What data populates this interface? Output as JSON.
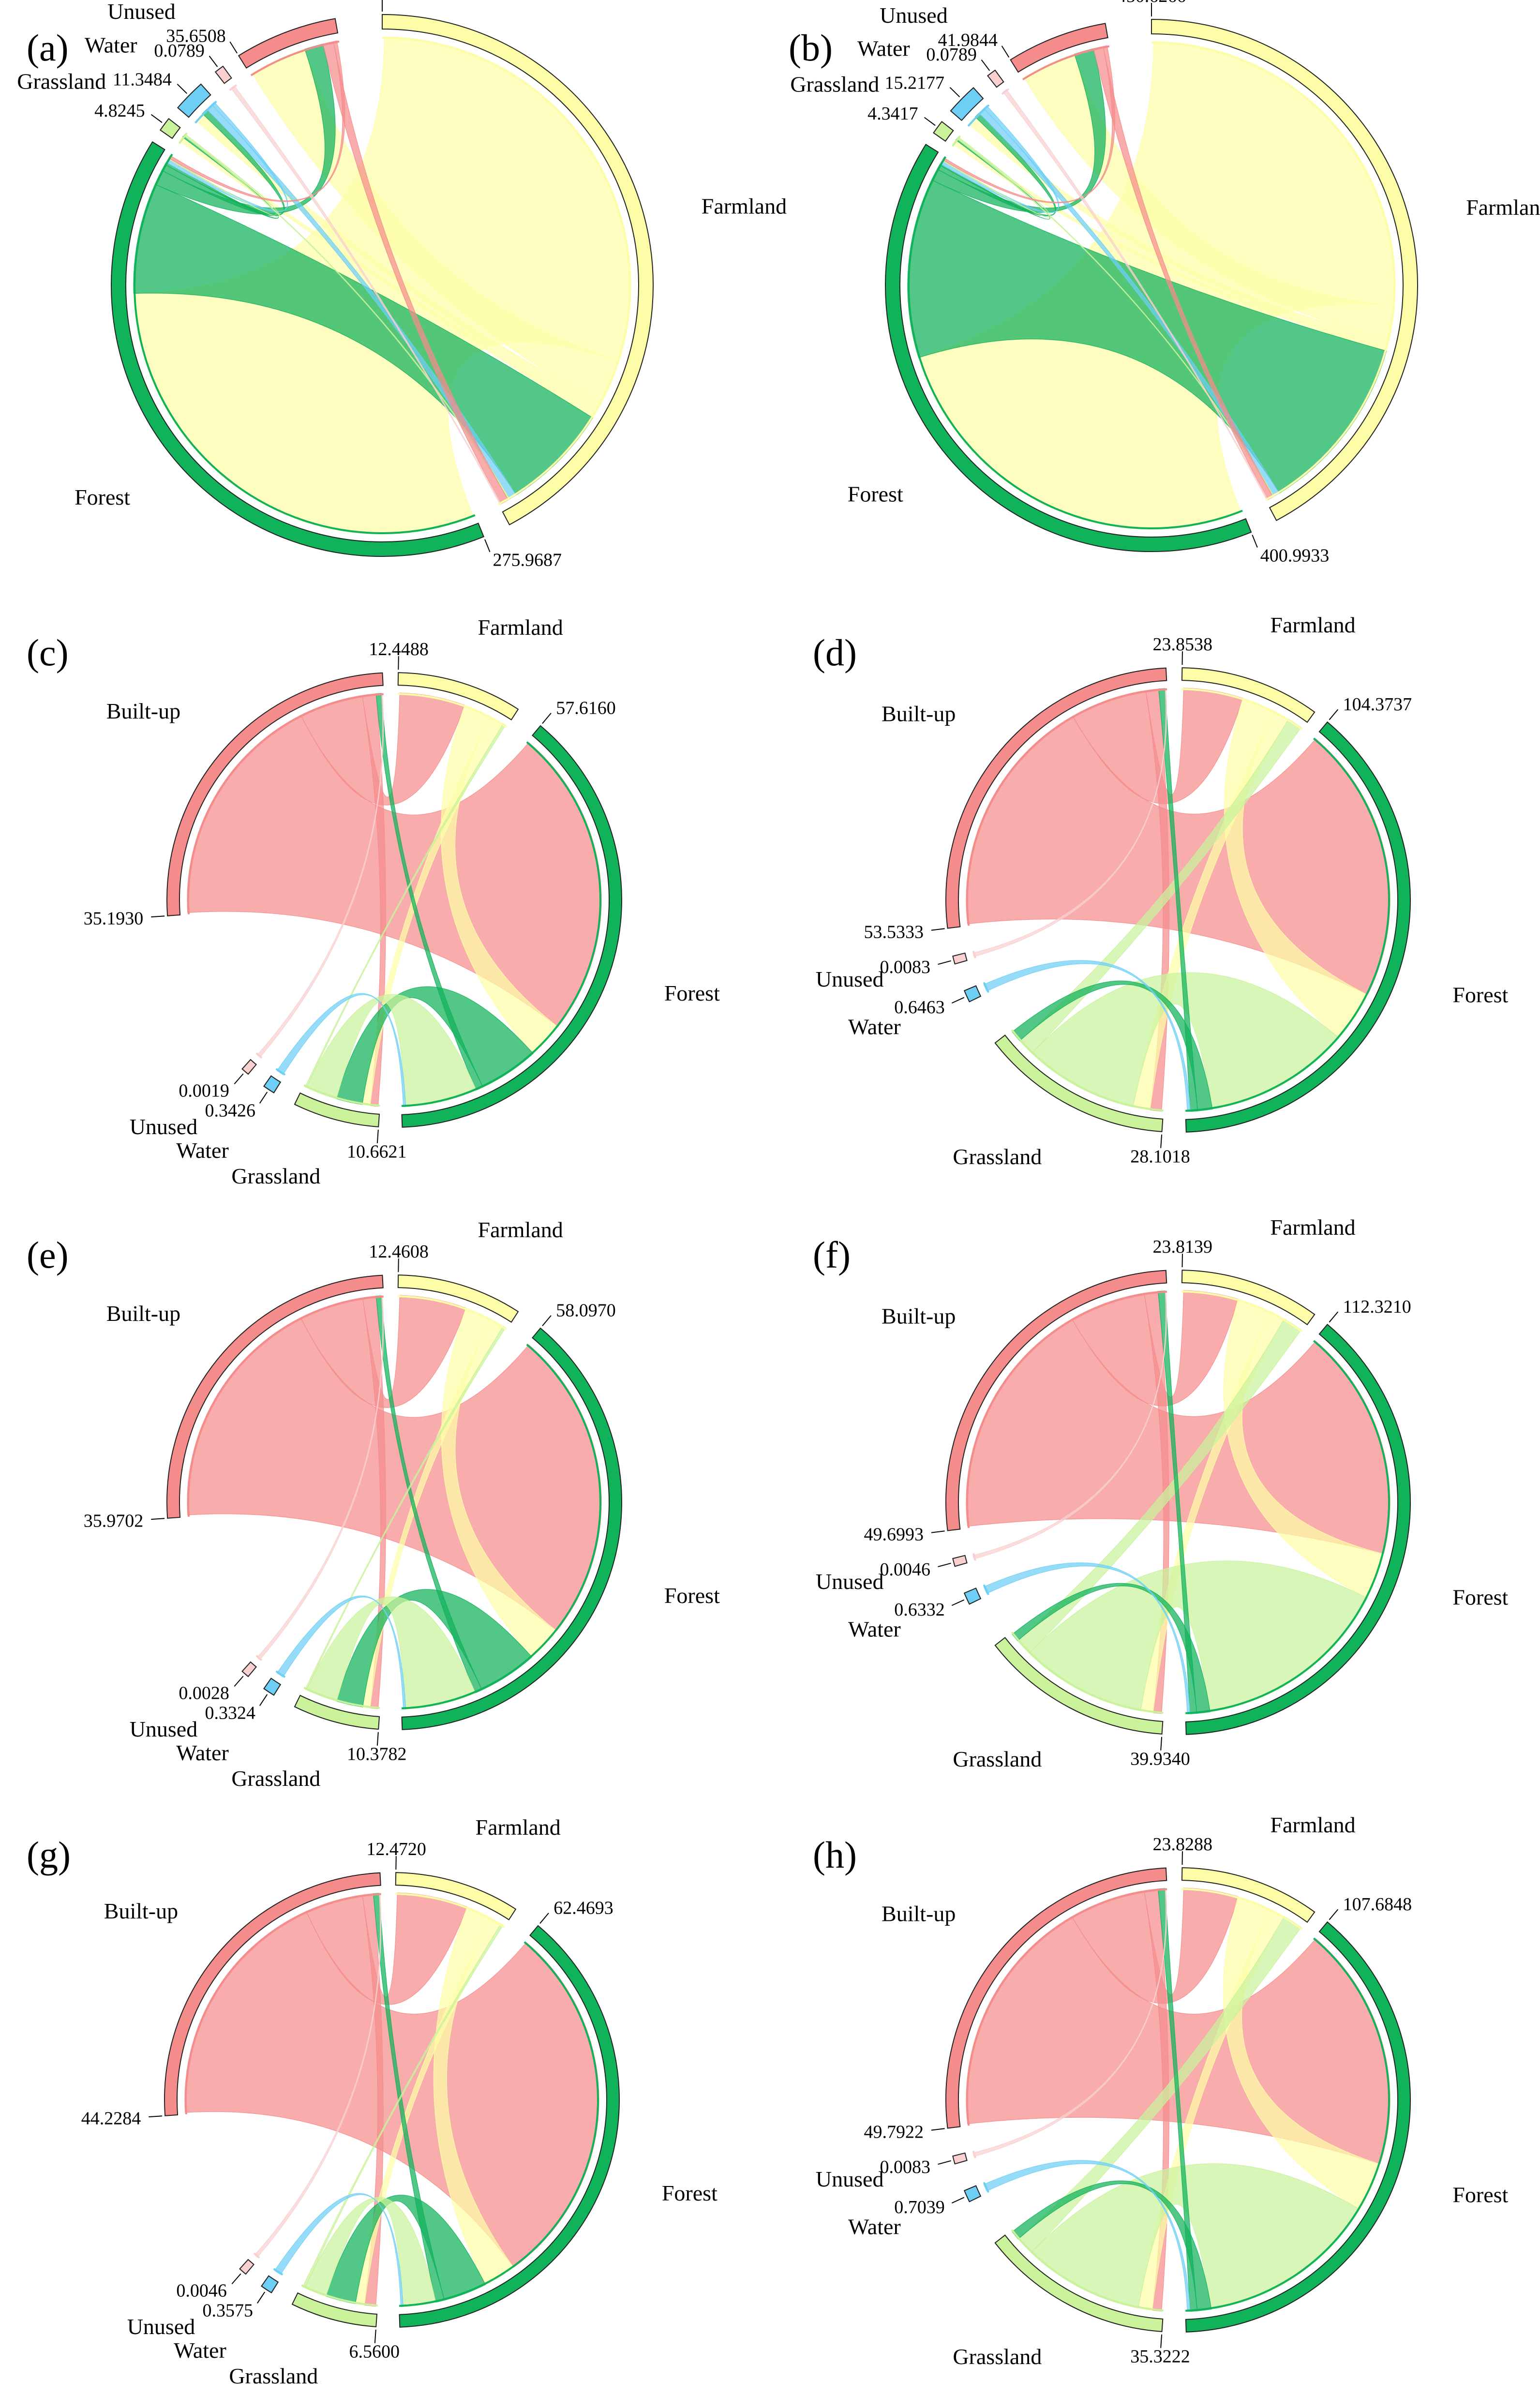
{
  "colors": {
    "Farmland": "#fdfda8",
    "Forest": "#10b25a",
    "Grassland": "#c9f29b",
    "Water": "#6ecff6",
    "Unused": "#f8d0d0",
    "Built-up": "#f58c8c"
  },
  "chart_data": [
    {
      "type": "chord",
      "panel": "(a)",
      "order": [
        "Farmland",
        "Forest",
        "Grassland",
        "Water",
        "Unused",
        "Built-up"
      ],
      "labels": {
        "Farmland": "Farmland",
        "Forest": "Forest",
        "Grassland": "Grassland",
        "Water": "Water",
        "Unused": "Unused",
        "Built-up": "Built-up"
      },
      "values": {
        "Farmland": "313.5273",
        "Forest": "275.9687",
        "Grassland": "4.8245",
        "Water": "11.3484",
        "Unused": "0.0789",
        "Built-up": "35.6508"
      },
      "flows": [
        {
          "from": "Farmland",
          "to": "Forest",
          "value": 246.0
        },
        {
          "from": "Farmland",
          "to": "Built-up",
          "value": 24.5
        },
        {
          "from": "Farmland",
          "to": "Water",
          "value": 5.5
        },
        {
          "from": "Farmland",
          "to": "Grassland",
          "value": 3.3
        },
        {
          "from": "Forest",
          "to": "Farmland",
          "value": 58.0
        },
        {
          "from": "Forest",
          "to": "Built-up",
          "value": 8.0
        },
        {
          "from": "Forest",
          "to": "Water",
          "value": 3.5
        },
        {
          "from": "Forest",
          "to": "Grassland",
          "value": 1.2
        },
        {
          "from": "Water",
          "to": "Farmland",
          "value": 4.0
        },
        {
          "from": "Water",
          "to": "Forest",
          "value": 2.0
        },
        {
          "from": "Grassland",
          "to": "Farmland",
          "value": 0.8
        },
        {
          "from": "Grassland",
          "to": "Forest",
          "value": 0.6
        },
        {
          "from": "Built-up",
          "to": "Farmland",
          "value": 4.5
        },
        {
          "from": "Built-up",
          "to": "Forest",
          "value": 1.5
        },
        {
          "from": "Unused",
          "to": "Farmland",
          "value": 0.05
        }
      ]
    },
    {
      "type": "chord",
      "panel": "(b)",
      "order": [
        "Farmland",
        "Forest",
        "Grassland",
        "Water",
        "Unused",
        "Built-up"
      ],
      "labels": {
        "Farmland": "Farmland",
        "Forest": "Forest",
        "Grassland": "Grassland",
        "Water": "Water",
        "Unused": "Unused",
        "Built-up": "Built-up"
      },
      "values": {
        "Farmland": "450.6266",
        "Forest": "400.9933",
        "Grassland": "4.3417",
        "Water": "15.2177",
        "Unused": "0.0789",
        "Built-up": "41.9844"
      },
      "flows": [
        {
          "from": "Farmland",
          "to": "Forest",
          "value": 330.0
        },
        {
          "from": "Farmland",
          "to": "Built-up",
          "value": 28.0
        },
        {
          "from": "Farmland",
          "to": "Water",
          "value": 7.0
        },
        {
          "from": "Farmland",
          "to": "Grassland",
          "value": 3.0
        },
        {
          "from": "Forest",
          "to": "Farmland",
          "value": 150.0
        },
        {
          "from": "Forest",
          "to": "Built-up",
          "value": 10.0
        },
        {
          "from": "Forest",
          "to": "Water",
          "value": 4.0
        },
        {
          "from": "Forest",
          "to": "Grassland",
          "value": 1.0
        },
        {
          "from": "Water",
          "to": "Farmland",
          "value": 5.0
        },
        {
          "from": "Water",
          "to": "Forest",
          "value": 3.0
        },
        {
          "from": "Grassland",
          "to": "Farmland",
          "value": 0.8
        },
        {
          "from": "Grassland",
          "to": "Forest",
          "value": 0.5
        },
        {
          "from": "Built-up",
          "to": "Farmland",
          "value": 5.0
        },
        {
          "from": "Built-up",
          "to": "Forest",
          "value": 2.0
        },
        {
          "from": "Unused",
          "to": "Farmland",
          "value": 0.05
        }
      ]
    },
    {
      "type": "chord",
      "panel": "(c)",
      "order": [
        "Farmland",
        "Forest",
        "Grassland",
        "Water",
        "Unused",
        "Built-up"
      ],
      "labels": {
        "Farmland": "Farmland",
        "Forest": "Forest",
        "Grassland": "Grassland",
        "Water": "Water",
        "Unused": "Unused",
        "Built-up": "Built-up"
      },
      "values": {
        "Farmland": "12.4488",
        "Forest": "57.6160",
        "Grassland": "10.6621",
        "Water": "0.3426",
        "Unused": "0.0019",
        "Built-up": "35.1930"
      },
      "flows": [
        {
          "from": "Built-up",
          "to": "Forest",
          "value": 26.0
        },
        {
          "from": "Built-up",
          "to": "Farmland",
          "value": 7.0
        },
        {
          "from": "Built-up",
          "to": "Grassland",
          "value": 1.5
        },
        {
          "from": "Farmland",
          "to": "Forest",
          "value": 3.0
        },
        {
          "from": "Farmland",
          "to": "Grassland",
          "value": 1.5
        },
        {
          "from": "Forest",
          "to": "Grassland",
          "value": 5.0
        },
        {
          "from": "Forest",
          "to": "Built-up",
          "value": 0.6
        },
        {
          "from": "Grassland",
          "to": "Forest",
          "value": 6.0
        },
        {
          "from": "Grassland",
          "to": "Farmland",
          "value": 0.3
        },
        {
          "from": "Water",
          "to": "Forest",
          "value": 0.2
        },
        {
          "from": "Unused",
          "to": "Built-up",
          "value": 0.01
        }
      ]
    },
    {
      "type": "chord",
      "panel": "(d)",
      "order": [
        "Farmland",
        "Forest",
        "Grassland",
        "Water",
        "Unused",
        "Built-up"
      ],
      "labels": {
        "Farmland": "Farmland",
        "Forest": "Forest",
        "Grassland": "Grassland",
        "Water": "Water",
        "Unused": "Unused",
        "Built-up": "Built-up"
      },
      "values": {
        "Farmland": "23.8538",
        "Forest": "104.3737",
        "Grassland": "28.1018",
        "Water": "0.6463",
        "Unused": "0.0083",
        "Built-up": "53.5333"
      },
      "flows": [
        {
          "from": "Built-up",
          "to": "Forest",
          "value": 38.0
        },
        {
          "from": "Built-up",
          "to": "Farmland",
          "value": 12.0
        },
        {
          "from": "Built-up",
          "to": "Grassland",
          "value": 2.0
        },
        {
          "from": "Farmland",
          "to": "Forest",
          "value": 7.0
        },
        {
          "from": "Farmland",
          "to": "Grassland",
          "value": 3.0
        },
        {
          "from": "Grassland",
          "to": "Forest",
          "value": 20.0
        },
        {
          "from": "Grassland",
          "to": "Farmland",
          "value": 3.0
        },
        {
          "from": "Forest",
          "to": "Grassland",
          "value": 2.0
        },
        {
          "from": "Forest",
          "to": "Built-up",
          "value": 1.0
        },
        {
          "from": "Water",
          "to": "Forest",
          "value": 0.4
        },
        {
          "from": "Unused",
          "to": "Built-up",
          "value": 0.01
        }
      ]
    },
    {
      "type": "chord",
      "panel": "(e)",
      "order": [
        "Farmland",
        "Forest",
        "Grassland",
        "Water",
        "Unused",
        "Built-up"
      ],
      "labels": {
        "Farmland": "Farmland",
        "Forest": "Forest",
        "Grassland": "Grassland",
        "Water": "Water",
        "Unused": "Unused",
        "Built-up": "Built-up"
      },
      "values": {
        "Farmland": "12.4608",
        "Forest": "58.0970",
        "Grassland": "10.3782",
        "Water": "0.3324",
        "Unused": "0.0028",
        "Built-up": "35.9702"
      },
      "flows": [
        {
          "from": "Built-up",
          "to": "Forest",
          "value": 26.5
        },
        {
          "from": "Built-up",
          "to": "Farmland",
          "value": 7.2
        },
        {
          "from": "Built-up",
          "to": "Grassland",
          "value": 1.5
        },
        {
          "from": "Farmland",
          "to": "Forest",
          "value": 3.0
        },
        {
          "from": "Farmland",
          "to": "Grassland",
          "value": 1.4
        },
        {
          "from": "Forest",
          "to": "Grassland",
          "value": 5.0
        },
        {
          "from": "Forest",
          "to": "Built-up",
          "value": 0.6
        },
        {
          "from": "Grassland",
          "to": "Forest",
          "value": 6.0
        },
        {
          "from": "Grassland",
          "to": "Farmland",
          "value": 0.3
        },
        {
          "from": "Water",
          "to": "Forest",
          "value": 0.2
        },
        {
          "from": "Unused",
          "to": "Built-up",
          "value": 0.01
        }
      ]
    },
    {
      "type": "chord",
      "panel": "(f)",
      "order": [
        "Farmland",
        "Forest",
        "Grassland",
        "Water",
        "Unused",
        "Built-up"
      ],
      "labels": {
        "Farmland": "Farmland",
        "Forest": "Forest",
        "Grassland": "Grassland",
        "Water": "Water",
        "Unused": "Unused",
        "Built-up": "Built-up"
      },
      "values": {
        "Farmland": "23.8139",
        "Forest": "112.3210",
        "Grassland": "39.9340",
        "Water": "0.6332",
        "Unused": "0.0046",
        "Built-up": "49.6993"
      },
      "flows": [
        {
          "from": "Built-up",
          "to": "Forest",
          "value": 35.0
        },
        {
          "from": "Built-up",
          "to": "Farmland",
          "value": 11.0
        },
        {
          "from": "Built-up",
          "to": "Grassland",
          "value": 2.0
        },
        {
          "from": "Farmland",
          "to": "Forest",
          "value": 7.0
        },
        {
          "from": "Farmland",
          "to": "Grassland",
          "value": 3.0
        },
        {
          "from": "Grassland",
          "to": "Forest",
          "value": 30.0
        },
        {
          "from": "Grassland",
          "to": "Farmland",
          "value": 4.0
        },
        {
          "from": "Forest",
          "to": "Grassland",
          "value": 2.0
        },
        {
          "from": "Forest",
          "to": "Built-up",
          "value": 1.0
        },
        {
          "from": "Water",
          "to": "Forest",
          "value": 0.4
        },
        {
          "from": "Unused",
          "to": "Built-up",
          "value": 0.01
        }
      ]
    },
    {
      "type": "chord",
      "panel": "(g)",
      "order": [
        "Farmland",
        "Forest",
        "Grassland",
        "Water",
        "Unused",
        "Built-up"
      ],
      "labels": {
        "Farmland": "Farmland",
        "Forest": "Forest",
        "Grassland": "Grassland",
        "Water": "Water",
        "Unused": "Unused",
        "Built-up": "Built-up"
      },
      "values": {
        "Farmland": "12.4720",
        "Forest": "62.4693",
        "Grassland": "6.5600",
        "Water": "0.3575",
        "Unused": "0.0046",
        "Built-up": "44.2284"
      },
      "flows": [
        {
          "from": "Built-up",
          "to": "Forest",
          "value": 34.0
        },
        {
          "from": "Built-up",
          "to": "Farmland",
          "value": 8.0
        },
        {
          "from": "Built-up",
          "to": "Grassland",
          "value": 1.5
        },
        {
          "from": "Farmland",
          "to": "Forest",
          "value": 3.0
        },
        {
          "from": "Farmland",
          "to": "Grassland",
          "value": 1.2
        },
        {
          "from": "Forest",
          "to": "Grassland",
          "value": 4.0
        },
        {
          "from": "Forest",
          "to": "Built-up",
          "value": 0.8
        },
        {
          "from": "Grassland",
          "to": "Forest",
          "value": 3.0
        },
        {
          "from": "Grassland",
          "to": "Farmland",
          "value": 0.3
        },
        {
          "from": "Water",
          "to": "Forest",
          "value": 0.2
        },
        {
          "from": "Unused",
          "to": "Built-up",
          "value": 0.01
        }
      ]
    },
    {
      "type": "chord",
      "panel": "(h)",
      "order": [
        "Farmland",
        "Forest",
        "Grassland",
        "Water",
        "Unused",
        "Built-up"
      ],
      "labels": {
        "Farmland": "Farmland",
        "Forest": "Forest",
        "Grassland": "Grassland",
        "Water": "Water",
        "Unused": "Unused",
        "Built-up": "Built-up"
      },
      "values": {
        "Farmland": "23.8288",
        "Forest": "107.6848",
        "Grassland": "35.3222",
        "Water": "0.7039",
        "Unused": "0.0083",
        "Built-up": "49.7922"
      },
      "flows": [
        {
          "from": "Built-up",
          "to": "Forest",
          "value": 35.0
        },
        {
          "from": "Built-up",
          "to": "Farmland",
          "value": 11.0
        },
        {
          "from": "Built-up",
          "to": "Grassland",
          "value": 2.0
        },
        {
          "from": "Farmland",
          "to": "Forest",
          "value": 7.0
        },
        {
          "from": "Farmland",
          "to": "Grassland",
          "value": 3.0
        },
        {
          "from": "Grassland",
          "to": "Forest",
          "value": 26.0
        },
        {
          "from": "Grassland",
          "to": "Farmland",
          "value": 4.0
        },
        {
          "from": "Forest",
          "to": "Grassland",
          "value": 2.0
        },
        {
          "from": "Forest",
          "to": "Built-up",
          "value": 1.0
        },
        {
          "from": "Water",
          "to": "Forest",
          "value": 0.4
        },
        {
          "from": "Unused",
          "to": "Built-up",
          "value": 0.01
        }
      ]
    }
  ]
}
